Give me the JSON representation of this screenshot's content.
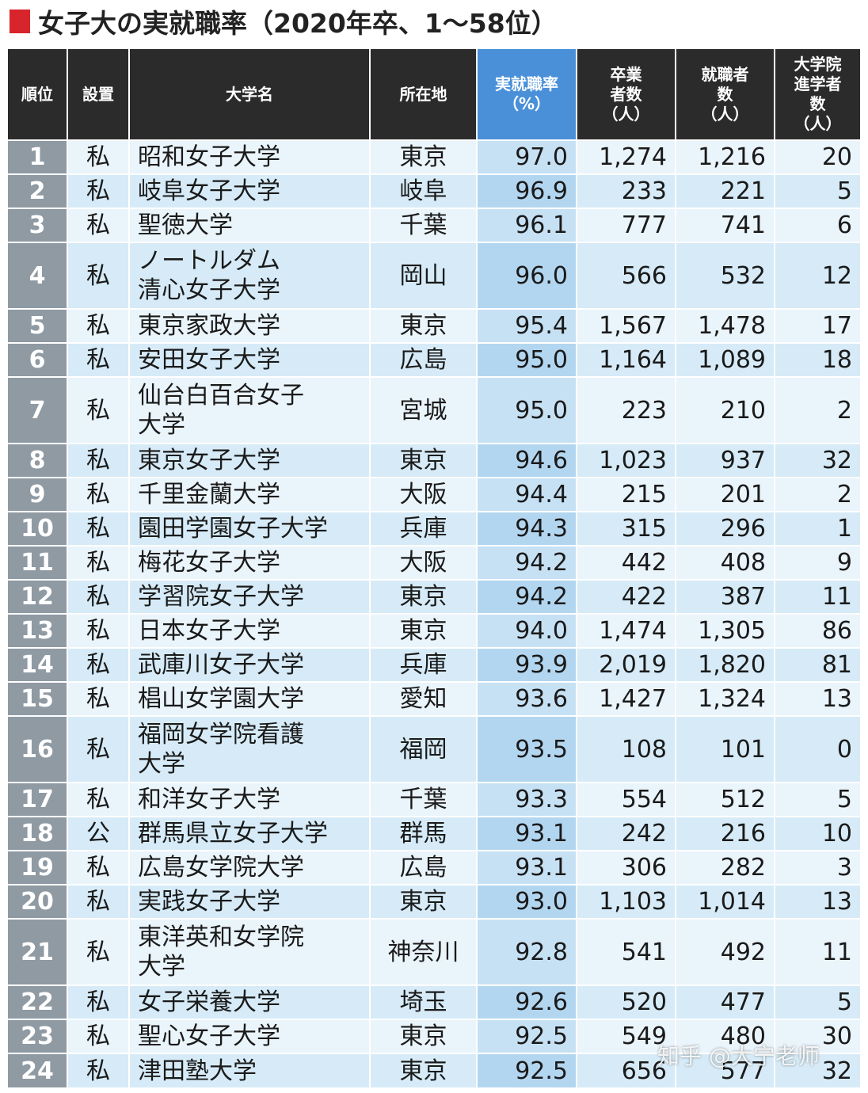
{
  "title": "女子大の実就職率（2020年卒、1〜58位）",
  "headers": {
    "rank": "順位",
    "type": "設置",
    "name": "大学名",
    "location": "所在地",
    "rate": [
      "実就職率",
      "（%）"
    ],
    "graduates": [
      "卒業",
      "者数",
      "（人）"
    ],
    "employed": [
      "就職者",
      "数",
      "（人）"
    ],
    "grad_school": [
      "大学院",
      "進学者",
      "数",
      "（人）"
    ]
  },
  "rows": [
    {
      "rank": "1",
      "type": "私",
      "name": [
        "昭和女子大学"
      ],
      "location": "東京",
      "rate": "97.0",
      "graduates": "1,274",
      "employed": "1,216",
      "grad_school": "20"
    },
    {
      "rank": "2",
      "type": "私",
      "name": [
        "岐阜女子大学"
      ],
      "location": "岐阜",
      "rate": "96.9",
      "graduates": "233",
      "employed": "221",
      "grad_school": "5"
    },
    {
      "rank": "3",
      "type": "私",
      "name": [
        "聖徳大学"
      ],
      "location": "千葉",
      "rate": "96.1",
      "graduates": "777",
      "employed": "741",
      "grad_school": "6"
    },
    {
      "rank": "4",
      "type": "私",
      "name": [
        "ノートルダム",
        "清心女子大学"
      ],
      "location": "岡山",
      "rate": "96.0",
      "graduates": "566",
      "employed": "532",
      "grad_school": "12"
    },
    {
      "rank": "5",
      "type": "私",
      "name": [
        "東京家政大学"
      ],
      "location": "東京",
      "rate": "95.4",
      "graduates": "1,567",
      "employed": "1,478",
      "grad_school": "17"
    },
    {
      "rank": "6",
      "type": "私",
      "name": [
        "安田女子大学"
      ],
      "location": "広島",
      "rate": "95.0",
      "graduates": "1,164",
      "employed": "1,089",
      "grad_school": "18"
    },
    {
      "rank": "7",
      "type": "私",
      "name": [
        "仙台白百合女子",
        "大学"
      ],
      "location": "宮城",
      "rate": "95.0",
      "graduates": "223",
      "employed": "210",
      "grad_school": "2"
    },
    {
      "rank": "8",
      "type": "私",
      "name": [
        "東京女子大学"
      ],
      "location": "東京",
      "rate": "94.6",
      "graduates": "1,023",
      "employed": "937",
      "grad_school": "32"
    },
    {
      "rank": "9",
      "type": "私",
      "name": [
        "千里金蘭大学"
      ],
      "location": "大阪",
      "rate": "94.4",
      "graduates": "215",
      "employed": "201",
      "grad_school": "2"
    },
    {
      "rank": "10",
      "type": "私",
      "name": [
        "園田学園女子大学"
      ],
      "location": "兵庫",
      "rate": "94.3",
      "graduates": "315",
      "employed": "296",
      "grad_school": "1"
    },
    {
      "rank": "11",
      "type": "私",
      "name": [
        "梅花女子大学"
      ],
      "location": "大阪",
      "rate": "94.2",
      "graduates": "442",
      "employed": "408",
      "grad_school": "9"
    },
    {
      "rank": "12",
      "type": "私",
      "name": [
        "学習院女子大学"
      ],
      "location": "東京",
      "rate": "94.2",
      "graduates": "422",
      "employed": "387",
      "grad_school": "11"
    },
    {
      "rank": "13",
      "type": "私",
      "name": [
        "日本女子大学"
      ],
      "location": "東京",
      "rate": "94.0",
      "graduates": "1,474",
      "employed": "1,305",
      "grad_school": "86"
    },
    {
      "rank": "14",
      "type": "私",
      "name": [
        "武庫川女子大学"
      ],
      "location": "兵庫",
      "rate": "93.9",
      "graduates": "2,019",
      "employed": "1,820",
      "grad_school": "81"
    },
    {
      "rank": "15",
      "type": "私",
      "name": [
        "椙山女学園大学"
      ],
      "location": "愛知",
      "rate": "93.6",
      "graduates": "1,427",
      "employed": "1,324",
      "grad_school": "13"
    },
    {
      "rank": "16",
      "type": "私",
      "name": [
        "福岡女学院看護",
        "大学"
      ],
      "location": "福岡",
      "rate": "93.5",
      "graduates": "108",
      "employed": "101",
      "grad_school": "0"
    },
    {
      "rank": "17",
      "type": "私",
      "name": [
        "和洋女子大学"
      ],
      "location": "千葉",
      "rate": "93.3",
      "graduates": "554",
      "employed": "512",
      "grad_school": "5"
    },
    {
      "rank": "18",
      "type": "公",
      "name": [
        "群馬県立女子大学"
      ],
      "location": "群馬",
      "rate": "93.1",
      "graduates": "242",
      "employed": "216",
      "grad_school": "10"
    },
    {
      "rank": "19",
      "type": "私",
      "name": [
        "広島女学院大学"
      ],
      "location": "広島",
      "rate": "93.1",
      "graduates": "306",
      "employed": "282",
      "grad_school": "3"
    },
    {
      "rank": "20",
      "type": "私",
      "name": [
        "実践女子大学"
      ],
      "location": "東京",
      "rate": "93.0",
      "graduates": "1,103",
      "employed": "1,014",
      "grad_school": "13"
    },
    {
      "rank": "21",
      "type": "私",
      "name": [
        "東洋英和女学院",
        "大学"
      ],
      "location": "神奈川",
      "rate": "92.8",
      "graduates": "541",
      "employed": "492",
      "grad_school": "11"
    },
    {
      "rank": "22",
      "type": "私",
      "name": [
        "女子栄養大学"
      ],
      "location": "埼玉",
      "rate": "92.6",
      "graduates": "520",
      "employed": "477",
      "grad_school": "5"
    },
    {
      "rank": "23",
      "type": "私",
      "name": [
        "聖心女子大学"
      ],
      "location": "東京",
      "rate": "92.5",
      "graduates": "549",
      "employed": "480",
      "grad_school": "30"
    },
    {
      "rank": "24",
      "type": "私",
      "name": [
        "津田塾大学"
      ],
      "location": "東京",
      "rate": "92.5",
      "graduates": "656",
      "employed": "577",
      "grad_school": "32"
    }
  ],
  "watermark": "知乎 @大宁老师"
}
